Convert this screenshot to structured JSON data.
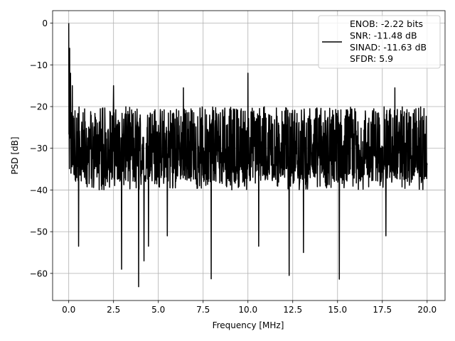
{
  "chart_data": {
    "type": "line",
    "title": "",
    "xlabel": "Frequency [MHz]",
    "ylabel": "PSD [dB]",
    "xlim": [
      -0.9,
      21.0
    ],
    "ylim": [
      -66.5,
      3.0
    ],
    "xticks": [
      0.0,
      2.5,
      5.0,
      7.5,
      10.0,
      12.5,
      15.0,
      17.5,
      20.0
    ],
    "xtick_labels": [
      "0.0",
      "2.5",
      "5.0",
      "7.5",
      "10.0",
      "12.5",
      "15.0",
      "17.5",
      "20.0"
    ],
    "yticks": [
      0,
      -10,
      -20,
      -30,
      -40,
      -50,
      -60
    ],
    "ytick_labels": [
      "0",
      "−10",
      "−20",
      "−30",
      "−40",
      "−50",
      "−60"
    ],
    "grid": true,
    "legend_position": "top-right",
    "legend_entries": [
      "ENOB: -2.22 bits",
      "SNR: -11.48 dB",
      "SINAD: -11.63 dB",
      "SFDR: 5.9"
    ],
    "series": [
      {
        "color": "#000000",
        "noise_band": {
          "x_range": [
            0.0,
            20.0
          ],
          "upper_envelope": -20,
          "median": -29,
          "lower_typical": -40
        },
        "peaks": [
          {
            "x": 0.0,
            "y": 0.0
          },
          {
            "x": 0.05,
            "y": -6
          },
          {
            "x": 0.1,
            "y": -12
          },
          {
            "x": 0.2,
            "y": -15
          },
          {
            "x": 10.0,
            "y": -12
          },
          {
            "x": 2.5,
            "y": -15
          },
          {
            "x": 6.4,
            "y": -15.5
          },
          {
            "x": 18.2,
            "y": -15.5
          }
        ],
        "dips": [
          {
            "x": 0.55,
            "y": -53.5
          },
          {
            "x": 2.95,
            "y": -59
          },
          {
            "x": 3.9,
            "y": -63.2
          },
          {
            "x": 4.2,
            "y": -57
          },
          {
            "x": 4.45,
            "y": -53.5
          },
          {
            "x": 5.5,
            "y": -51
          },
          {
            "x": 7.95,
            "y": -61.3
          },
          {
            "x": 10.6,
            "y": -53.5
          },
          {
            "x": 12.3,
            "y": -60.5
          },
          {
            "x": 13.1,
            "y": -55
          },
          {
            "x": 15.1,
            "y": -61.4
          },
          {
            "x": 17.7,
            "y": -51
          }
        ]
      }
    ]
  }
}
